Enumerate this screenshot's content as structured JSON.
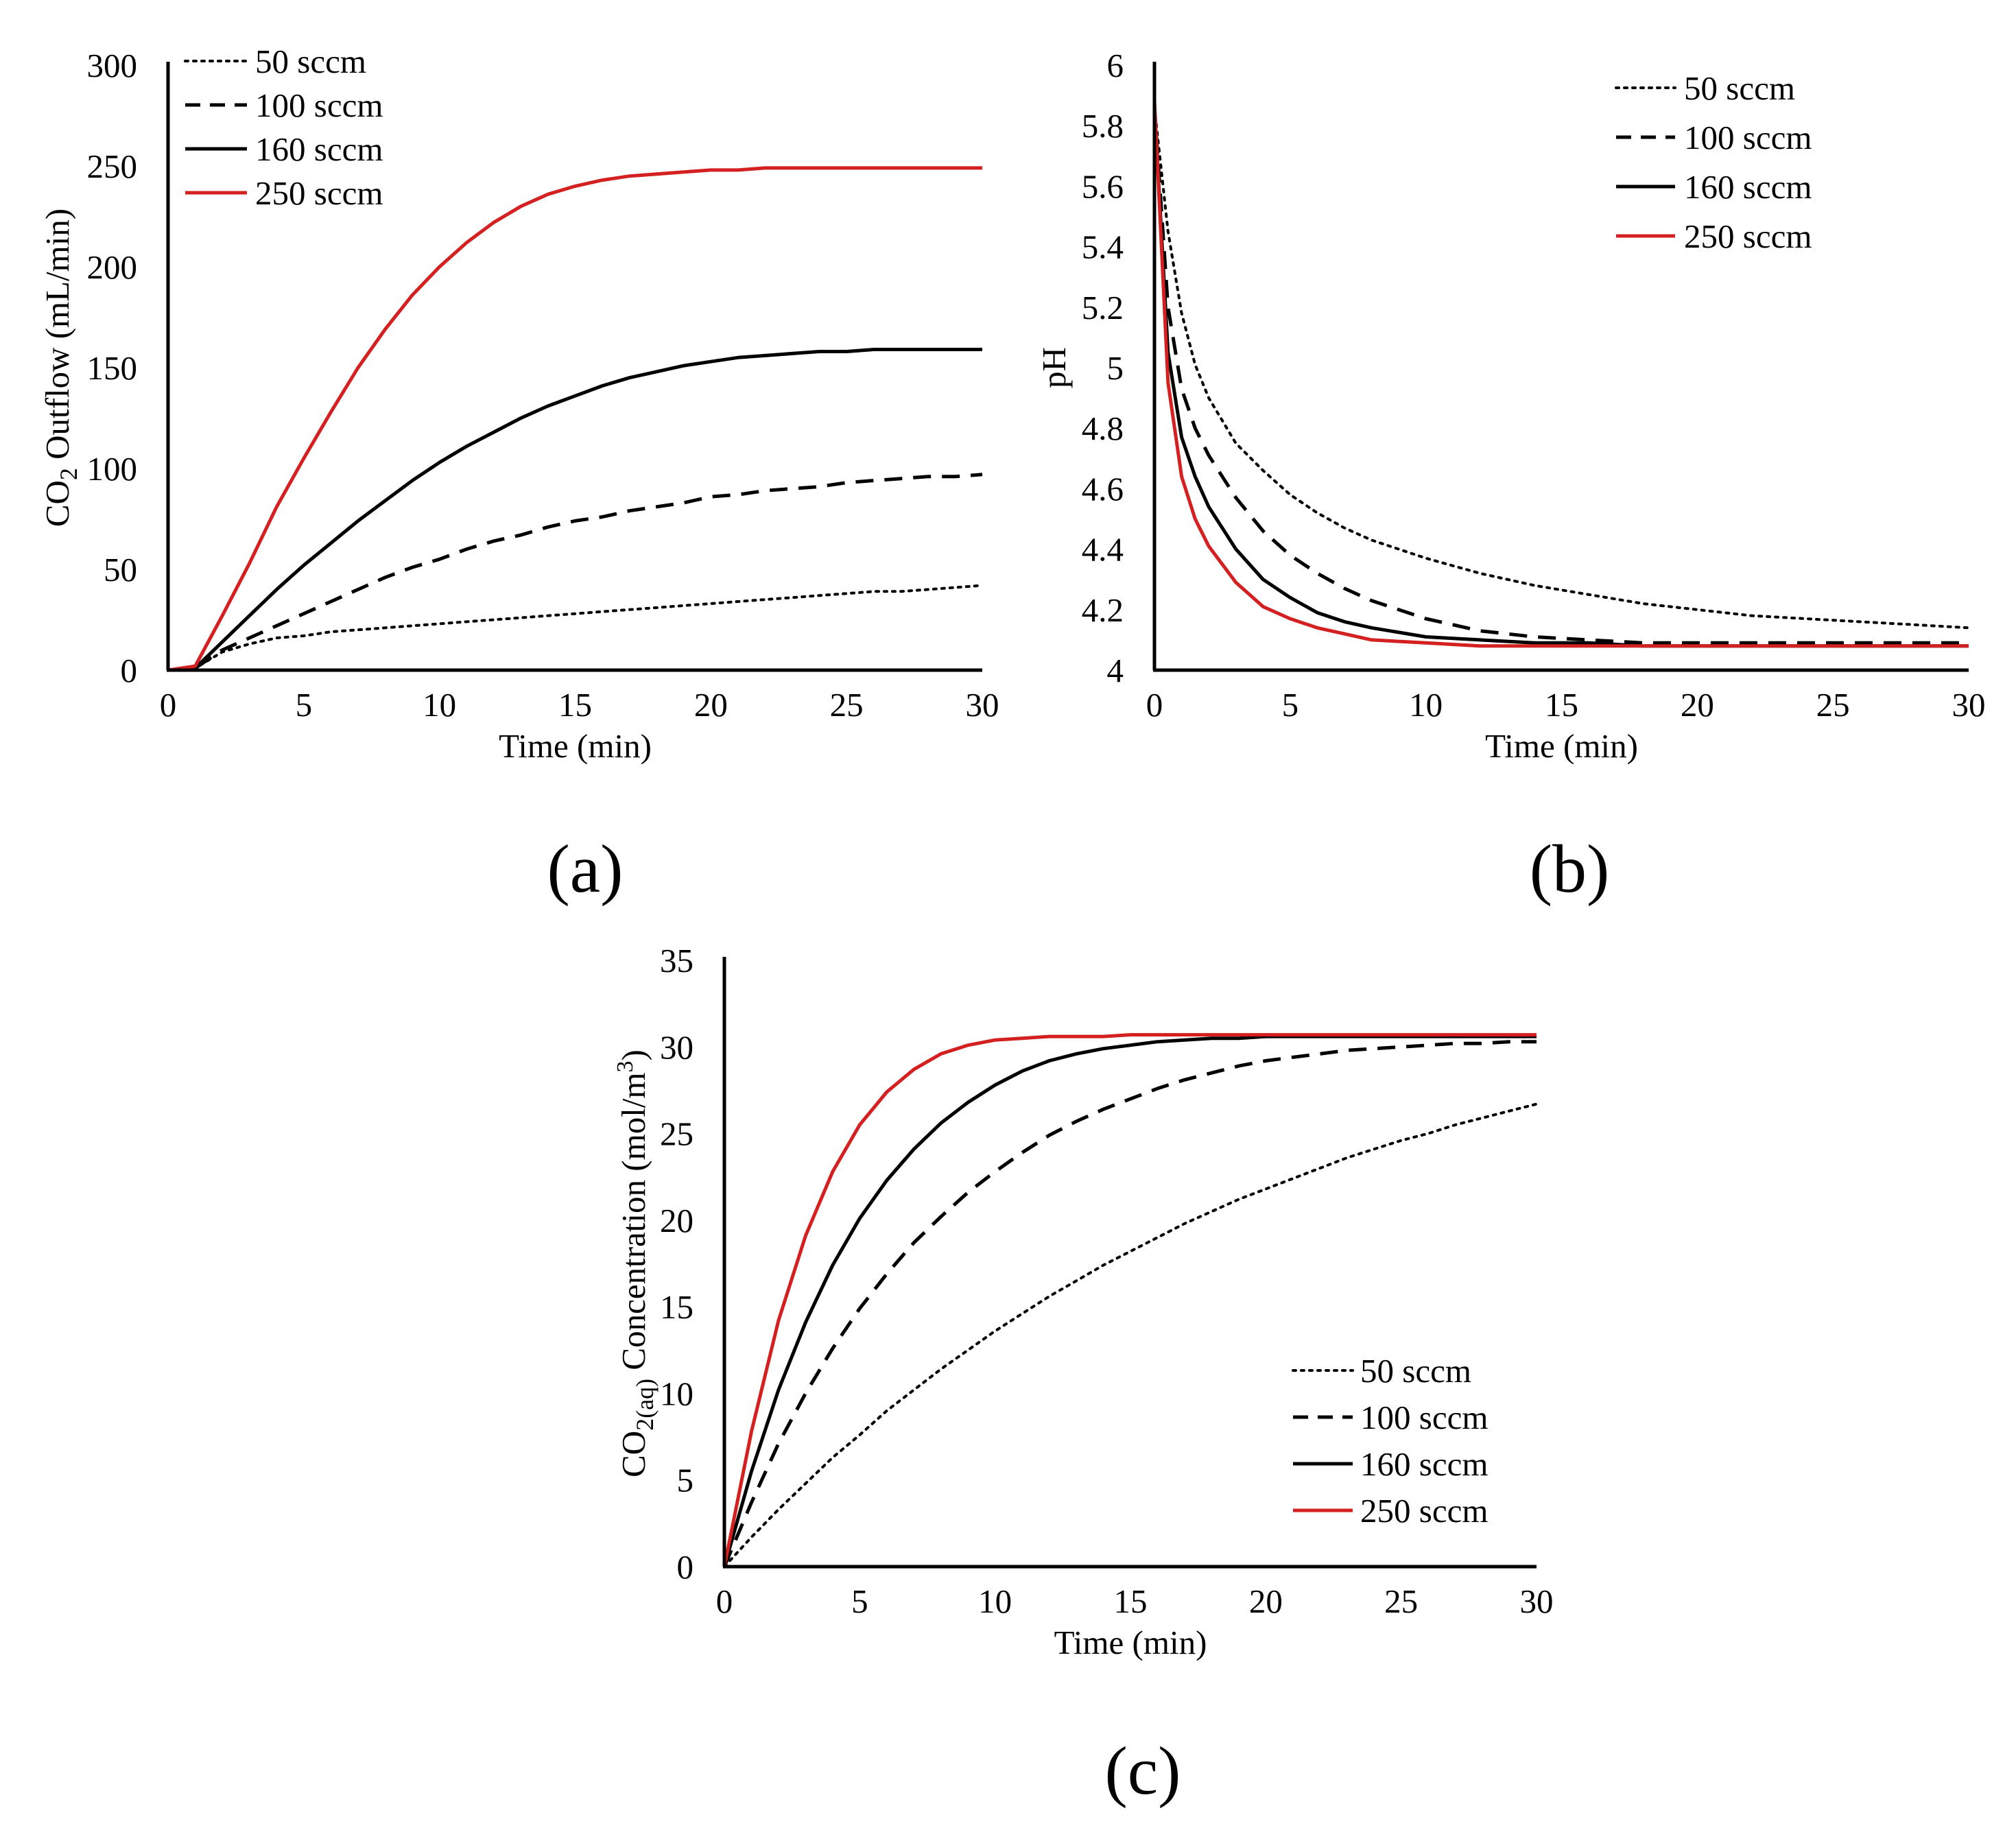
{
  "colors": {
    "axis": "#000000",
    "black": "#000000",
    "red": "#d42020"
  },
  "chart_data": [
    {
      "id": "a",
      "type": "line",
      "caption": "(a)",
      "xlabel": "Time (min)",
      "ylabel": {
        "pre": "CO",
        "sub": "2",
        "post": " Outflow (mL/min)"
      },
      "xlim": [
        0,
        30
      ],
      "ylim": [
        0,
        300
      ],
      "xticks": [
        "0",
        "5",
        "10",
        "15",
        "20",
        "25",
        "30"
      ],
      "yticks": [
        "0",
        "50",
        "100",
        "150",
        "200",
        "250",
        "300"
      ],
      "legend_position": "top-left",
      "x": [
        0,
        1,
        2,
        3,
        4,
        5,
        6,
        7,
        8,
        9,
        10,
        11,
        12,
        13,
        14,
        15,
        16,
        17,
        18,
        19,
        20,
        21,
        22,
        23,
        24,
        25,
        26,
        27,
        28,
        29,
        30
      ],
      "series": [
        {
          "name": "50 sccm",
          "style": "dotted",
          "color": "#000000",
          "values": [
            0,
            1,
            9,
            13,
            16,
            17,
            19,
            20,
            21,
            22,
            23,
            24,
            25,
            26,
            27,
            28,
            29,
            30,
            31,
            32,
            33,
            34,
            35,
            36,
            37,
            38,
            39,
            39,
            40,
            41,
            42
          ]
        },
        {
          "name": "100 sccm",
          "style": "dashed",
          "color": "#000000",
          "values": [
            0,
            1,
            10,
            16,
            22,
            28,
            34,
            40,
            46,
            51,
            55,
            60,
            64,
            67,
            71,
            74,
            76,
            79,
            81,
            83,
            86,
            87,
            89,
            90,
            91,
            93,
            94,
            95,
            96,
            96,
            97
          ]
        },
        {
          "name": "160 sccm",
          "style": "solid",
          "color": "#000000",
          "values": [
            0,
            1,
            14,
            27,
            40,
            52,
            63,
            74,
            84,
            94,
            103,
            111,
            118,
            125,
            131,
            136,
            141,
            145,
            148,
            151,
            153,
            155,
            156,
            157,
            158,
            158,
            159,
            159,
            159,
            159,
            159
          ]
        },
        {
          "name": "250 sccm",
          "style": "solid",
          "color": "#d42020",
          "values": [
            0,
            2,
            27,
            53,
            81,
            105,
            128,
            150,
            169,
            186,
            200,
            212,
            222,
            230,
            236,
            240,
            243,
            245,
            246,
            247,
            248,
            248,
            249,
            249,
            249,
            249,
            249,
            249,
            249,
            249,
            249
          ]
        }
      ]
    },
    {
      "id": "b",
      "type": "line",
      "caption": "(b)",
      "xlabel": "Time (min)",
      "ylabel": {
        "pre": "pH",
        "sub": "",
        "post": ""
      },
      "xlim": [
        0,
        30
      ],
      "ylim": [
        4,
        6
      ],
      "xticks": [
        "0",
        "5",
        "10",
        "15",
        "20",
        "25",
        "30"
      ],
      "yticks": [
        "4",
        "4.2",
        "4.4",
        "4.6",
        "4.8",
        "5",
        "5.2",
        "5.4",
        "5.6",
        "5.8",
        "6"
      ],
      "legend_position": "top-right",
      "x": [
        0,
        0.5,
        1,
        1.5,
        2,
        3,
        4,
        5,
        6,
        7,
        8,
        10,
        12,
        14,
        16,
        18,
        20,
        22,
        24,
        26,
        28,
        30
      ],
      "series": [
        {
          "name": "50 sccm",
          "style": "dotted",
          "color": "#000000",
          "values": [
            5.86,
            5.45,
            5.18,
            5.01,
            4.9,
            4.75,
            4.66,
            4.58,
            4.52,
            4.47,
            4.43,
            4.37,
            4.32,
            4.28,
            4.25,
            4.22,
            4.2,
            4.18,
            4.17,
            4.16,
            4.15,
            4.14
          ]
        },
        {
          "name": "100 sccm",
          "style": "dashed",
          "color": "#000000",
          "values": [
            5.86,
            5.2,
            4.93,
            4.8,
            4.71,
            4.57,
            4.46,
            4.38,
            4.32,
            4.27,
            4.23,
            4.17,
            4.13,
            4.11,
            4.1,
            4.09,
            4.09,
            4.09,
            4.09,
            4.09,
            4.09,
            4.09
          ]
        },
        {
          "name": "160 sccm",
          "style": "solid",
          "color": "#000000",
          "values": [
            5.86,
            5.05,
            4.77,
            4.64,
            4.54,
            4.4,
            4.3,
            4.24,
            4.19,
            4.16,
            4.14,
            4.11,
            4.1,
            4.09,
            4.09,
            4.08,
            4.08,
            4.08,
            4.08,
            4.08,
            4.08,
            4.08
          ]
        },
        {
          "name": "250 sccm",
          "style": "solid",
          "color": "#d42020",
          "values": [
            5.88,
            4.95,
            4.64,
            4.5,
            4.41,
            4.29,
            4.21,
            4.17,
            4.14,
            4.12,
            4.1,
            4.09,
            4.08,
            4.08,
            4.08,
            4.08,
            4.08,
            4.08,
            4.08,
            4.08,
            4.08,
            4.08
          ]
        }
      ]
    },
    {
      "id": "c",
      "type": "line",
      "caption": "(c)",
      "xlabel": "Time (min)",
      "ylabel": {
        "pre": "CO",
        "sub": "2(aq)",
        "post": " Concentration (mol/m",
        "sup": "3",
        "end": ")"
      },
      "xlim": [
        0,
        30
      ],
      "ylim": [
        0,
        35
      ],
      "xticks": [
        "0",
        "5",
        "10",
        "15",
        "20",
        "25",
        "30"
      ],
      "yticks": [
        "0",
        "5",
        "10",
        "15",
        "20",
        "25",
        "30",
        "35"
      ],
      "legend_position": "bottom-right",
      "x": [
        0,
        1,
        2,
        3,
        4,
        5,
        6,
        7,
        8,
        9,
        10,
        11,
        12,
        13,
        14,
        15,
        16,
        17,
        18,
        19,
        20,
        21,
        22,
        23,
        24,
        25,
        26,
        27,
        28,
        29,
        30
      ],
      "series": [
        {
          "name": "50 sccm",
          "style": "dotted",
          "color": "#000000",
          "values": [
            0,
            1.7,
            3.3,
            4.8,
            6.3,
            7.6,
            9,
            10.2,
            11.4,
            12.5,
            13.6,
            14.6,
            15.6,
            16.5,
            17.4,
            18.2,
            19,
            19.8,
            20.5,
            21.2,
            21.8,
            22.4,
            23,
            23.6,
            24.1,
            24.6,
            25,
            25.5,
            25.9,
            26.3,
            26.7
          ]
        },
        {
          "name": "100 sccm",
          "style": "dashed",
          "color": "#000000",
          "values": [
            0,
            3.7,
            7.1,
            10,
            12.6,
            14.9,
            16.9,
            18.7,
            20.2,
            21.6,
            22.8,
            23.9,
            24.9,
            25.7,
            26.4,
            27,
            27.6,
            28.1,
            28.5,
            28.9,
            29.2,
            29.4,
            29.6,
            29.8,
            29.9,
            30,
            30.1,
            30.2,
            30.2,
            30.3,
            30.3
          ]
        },
        {
          "name": "160 sccm",
          "style": "solid",
          "color": "#000000",
          "values": [
            0,
            5.5,
            10.2,
            14.1,
            17.4,
            20.1,
            22.3,
            24.1,
            25.6,
            26.8,
            27.8,
            28.6,
            29.2,
            29.6,
            29.9,
            30.1,
            30.3,
            30.4,
            30.5,
            30.5,
            30.6,
            30.6,
            30.6,
            30.6,
            30.6,
            30.6,
            30.6,
            30.6,
            30.6,
            30.6,
            30.6
          ]
        },
        {
          "name": "250 sccm",
          "style": "solid",
          "color": "#d42020",
          "values": [
            0,
            7.8,
            14.2,
            19.1,
            22.8,
            25.5,
            27.4,
            28.7,
            29.6,
            30.1,
            30.4,
            30.5,
            30.6,
            30.6,
            30.6,
            30.7,
            30.7,
            30.7,
            30.7,
            30.7,
            30.7,
            30.7,
            30.7,
            30.7,
            30.7,
            30.7,
            30.7,
            30.7,
            30.7,
            30.7,
            30.7
          ]
        }
      ]
    }
  ]
}
